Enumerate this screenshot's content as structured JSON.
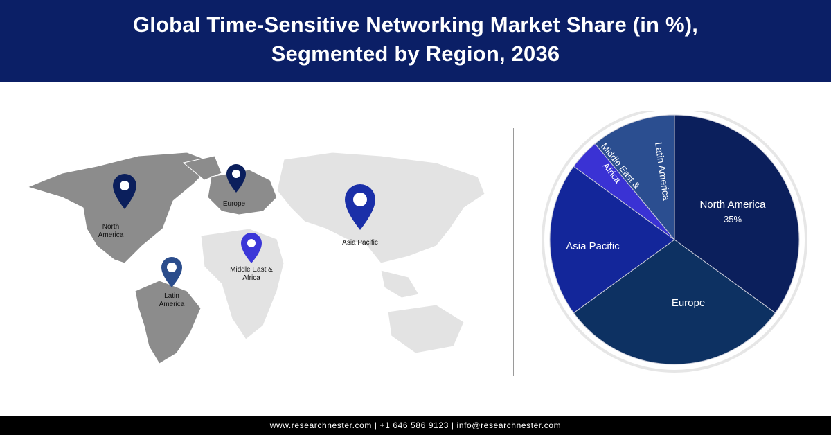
{
  "header": {
    "title_line1": "Global Time-Sensitive Networking Market Share (in %),",
    "title_line2": "Segmented by Region, 2036"
  },
  "map": {
    "pins": [
      {
        "label_line1": "North",
        "label_line2": "America",
        "color": "#0b1f5c"
      },
      {
        "label_line1": "Europe",
        "label_line2": "",
        "color": "#0b1f5c"
      },
      {
        "label_line1": "Asia Pacific",
        "label_line2": "",
        "color": "#1a2fa8"
      },
      {
        "label_line1": "Middle East &",
        "label_line2": "Africa",
        "color": "#3b37d8"
      },
      {
        "label_line1": "Latin",
        "label_line2": "America",
        "color": "#2b4d8c"
      }
    ]
  },
  "chart_data": {
    "type": "pie",
    "title": "",
    "slices": [
      {
        "label": "North America",
        "value": 35,
        "value_label": "35%",
        "color": "#0b1f5c"
      },
      {
        "label": "Europe",
        "value": 30,
        "value_label": "",
        "color": "#0d3162"
      },
      {
        "label": "Asia Pacific",
        "value": 20,
        "value_label": "",
        "color": "#13269a"
      },
      {
        "label": "Middle East & Africa",
        "value": 4,
        "value_label": "",
        "color": "#3a32d4"
      },
      {
        "label": "Latin America",
        "value": 11,
        "value_label": "",
        "color": "#2b4e90"
      }
    ]
  },
  "footer": {
    "text": "www.researchnester.com  |  +1 646 586 9123  |  info@researchnester.com"
  }
}
